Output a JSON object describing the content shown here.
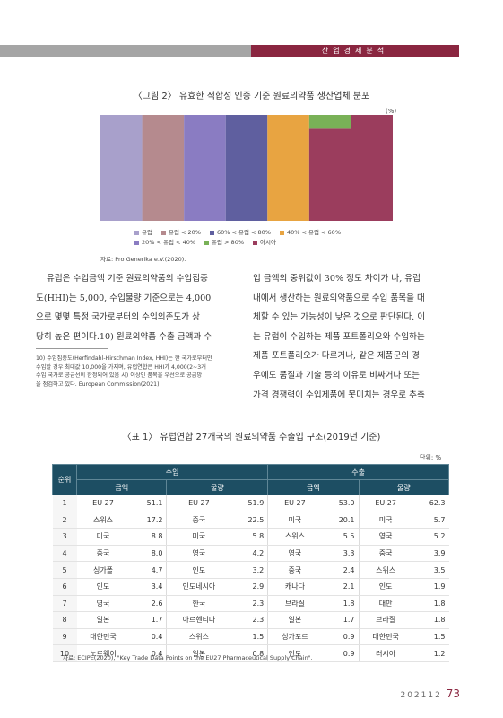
{
  "header": {
    "section": "산업경제분석"
  },
  "figure": {
    "title": "〈그림 2〉 유효한 적합성 인증 기준 원료의약품 생산업체 분포",
    "unit": "(%)",
    "source": "자료: Pro Generika e.V.(2020).",
    "colors": {
      "uk": "#a8a0cb",
      "eu2040": "#8a7cc2",
      "eu_lt20": "#b58a8e",
      "eu2040b": "#8a7cc2",
      "eu6080": "#5f5f9f",
      "eu40_60": "#e8a441",
      "eu_gt80": "#79b157",
      "asia": "#9b3d5d"
    },
    "chart_data": {
      "type": "bar",
      "stacked": true,
      "series_order_bottom_to_top": [
        "아시아",
        "유럽 > 80%",
        "60% < 유럽 < 80%",
        "40% < 유럽 < 60%",
        "20% < 유럽 < 40%",
        "유럽 < 20%",
        "유럽"
      ],
      "columns": [
        {
          "series": "유럽",
          "values": {
            "유럽": 100
          }
        },
        {
          "series": "유럽 < 20%",
          "values": {
            "유럽 < 20%": 100
          }
        },
        {
          "series": "20% < 유럽 < 40%",
          "values": {
            "20% < 유럽 < 40%": 100
          }
        },
        {
          "series": "60% < 유럽 < 80%",
          "values": {
            "60% < 유럽 < 80%": 100
          }
        },
        {
          "series": "40% < 유럽 < 60%",
          "values": {
            "40% < 유럽 < 60%": 100
          }
        },
        {
          "series": "유럽 > 80%",
          "values": {
            "유럽 > 80%": 13,
            "아시아": 87
          }
        },
        {
          "series": "아시아",
          "values": {
            "아시아": 100
          }
        }
      ],
      "legend": [
        {
          "label": "유럽",
          "color": "#a8a0cb"
        },
        {
          "label": "유럽 < 20%",
          "color": "#b58a8e"
        },
        {
          "label": "60% < 유럽 < 80%",
          "color": "#5f5f9f"
        },
        {
          "label": "40% < 유럽 < 60%",
          "color": "#e8a441"
        },
        {
          "label": "20% < 유럽 < 40%",
          "color": "#8a7cc2"
        },
        {
          "label": "유럽 > 80%",
          "color": "#79b157"
        },
        {
          "label": "아시아",
          "color": "#9b3d5d"
        }
      ],
      "ylim": [
        0,
        100
      ]
    }
  },
  "body": {
    "left_lines": [
      "유럽은 수입금액 기준 원료의약품의 수입집중",
      "도(HHI)는 5,000, 수입물량 기준으로는 4,000",
      "으로 몇몇 특정 국가로부터의 수입의존도가 상",
      "당히 높은 편이다.10) 원료의약품 수출 금액과 수"
    ],
    "right_lines": [
      "입 금액의 중위값이 30% 정도 차이가 나, 유럽",
      "내에서 생산하는 원료의약품으로 수입 품목을 대",
      "체할 수 있는 가능성이 낮은 것으로 판단된다. 이",
      "는 유럽이 수입하는 제품 포트폴리오와 수입하는",
      "제품 포트폴리오가 다르거나, 같은 제품군의 경",
      "우에도 품질과 기술 등의 이유로 비싸거나 또는",
      "가격 경쟁력이 수입제품에 못미치는 경우로 추측"
    ],
    "footnote_lines": [
      "10) 수입집중도(Herfindahl-Hirschman Index, HHI)는 한 국가로부터만",
      "수입할 경우 최대값 10,000을 가지며, 유럽연합은 HHI가 4,000(2~3개",
      "수입 국가로 공급선이 한정되어 있음 시) 이상인 품목을 우선으로 공급망",
      "을 점검하고 있다. European Commission(2021)."
    ]
  },
  "table": {
    "title": "〈표 1〉 유럽연합 27개국의 원료의약품 수출입 구조(2019년 기준)",
    "unit": "단위: %",
    "header": {
      "rank": "순위",
      "import": "수입",
      "export": "수출",
      "amount": "금액",
      "volume": "물량"
    },
    "rows": [
      {
        "rank": "1",
        "ia_c": "EU 27",
        "ia_v": "51.1",
        "iv_c": "EU 27",
        "iv_v": "51.9",
        "ea_c": "EU 27",
        "ea_v": "53.0",
        "ev_c": "EU 27",
        "ev_v": "62.3"
      },
      {
        "rank": "2",
        "ia_c": "스위스",
        "ia_v": "17.2",
        "iv_c": "중국",
        "iv_v": "22.5",
        "ea_c": "미국",
        "ea_v": "20.1",
        "ev_c": "미국",
        "ev_v": "5.7"
      },
      {
        "rank": "3",
        "ia_c": "미국",
        "ia_v": "8.8",
        "iv_c": "미국",
        "iv_v": "5.8",
        "ea_c": "스위스",
        "ea_v": "5.5",
        "ev_c": "영국",
        "ev_v": "5.2"
      },
      {
        "rank": "4",
        "ia_c": "중국",
        "ia_v": "8.0",
        "iv_c": "영국",
        "iv_v": "4.2",
        "ea_c": "영국",
        "ea_v": "3.3",
        "ev_c": "중국",
        "ev_v": "3.9"
      },
      {
        "rank": "5",
        "ia_c": "싱가폴",
        "ia_v": "4.7",
        "iv_c": "인도",
        "iv_v": "3.2",
        "ea_c": "중국",
        "ea_v": "2.4",
        "ev_c": "스위스",
        "ev_v": "3.5"
      },
      {
        "rank": "6",
        "ia_c": "인도",
        "ia_v": "3.4",
        "iv_c": "인도네시아",
        "iv_v": "2.9",
        "ea_c": "캐나다",
        "ea_v": "2.1",
        "ev_c": "인도",
        "ev_v": "1.9"
      },
      {
        "rank": "7",
        "ia_c": "영국",
        "ia_v": "2.6",
        "iv_c": "한국",
        "iv_v": "2.3",
        "ea_c": "브라질",
        "ea_v": "1.8",
        "ev_c": "대만",
        "ev_v": "1.8"
      },
      {
        "rank": "8",
        "ia_c": "일본",
        "ia_v": "1.7",
        "iv_c": "아르헨티나",
        "iv_v": "2.3",
        "ea_c": "일본",
        "ea_v": "1.7",
        "ev_c": "브라질",
        "ev_v": "1.8"
      },
      {
        "rank": "9",
        "ia_c": "대한민국",
        "ia_v": "0.4",
        "iv_c": "스위스",
        "iv_v": "1.5",
        "ea_c": "싱가포르",
        "ea_v": "0.9",
        "ev_c": "대한민국",
        "ev_v": "1.5"
      },
      {
        "rank": "10",
        "ia_c": "노르웨이",
        "ia_v": "0.4",
        "iv_c": "일본",
        "iv_v": "0.8",
        "ea_c": "인도",
        "ea_v": "0.9",
        "ev_c": "러시아",
        "ev_v": "1.2"
      }
    ],
    "source": "자료: ECIPE(2020), \"Key Trade Data Points on the EU27 Pharmaceutical Supply Chain\"."
  },
  "footer": {
    "issue": "202112",
    "page": "73"
  }
}
